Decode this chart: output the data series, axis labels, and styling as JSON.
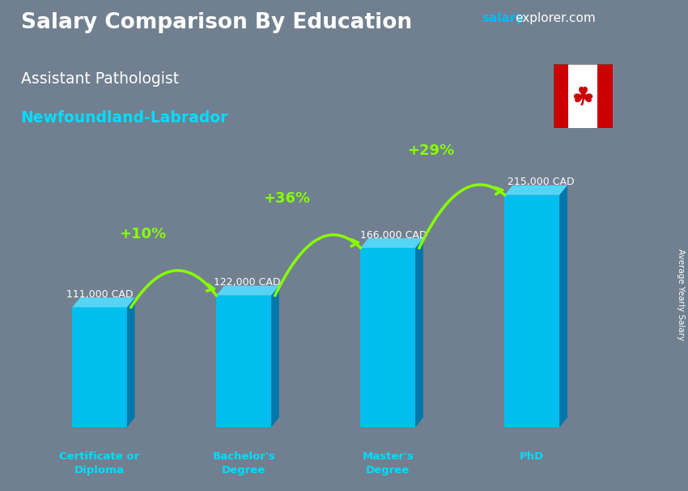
{
  "title": "Salary Comparison By Education",
  "subtitle1": "Assistant Pathologist",
  "subtitle2": "Newfoundland-Labrador",
  "watermark_salary": "salary",
  "watermark_rest": "explorer.com",
  "ylabel": "Average Yearly Salary",
  "categories": [
    "Certificate or\nDiploma",
    "Bachelor's\nDegree",
    "Master's\nDegree",
    "PhD"
  ],
  "values": [
    111000,
    122000,
    166000,
    215000
  ],
  "value_labels": [
    "111,000 CAD",
    "122,000 CAD",
    "166,000 CAD",
    "215,000 CAD"
  ],
  "pct_changes": [
    "+10%",
    "+36%",
    "+29%"
  ],
  "bar_color_face": "#00BFEE",
  "bar_color_side": "#0077AA",
  "bar_color_top": "#55D5F5",
  "bg_color": "#708090",
  "title_color": "#FFFFFF",
  "subtitle1_color": "#FFFFFF",
  "subtitle2_color": "#00DDFF",
  "value_label_color": "#FFFFFF",
  "pct_color": "#88FF00",
  "xlabel_color": "#00DDFF",
  "watermark_salary_color": "#00BBFF",
  "watermark_rest_color": "#FFFFFF",
  "ylabel_color": "#FFFFFF",
  "figsize": [
    8.5,
    6.06
  ],
  "dpi": 100,
  "max_val": 250000
}
